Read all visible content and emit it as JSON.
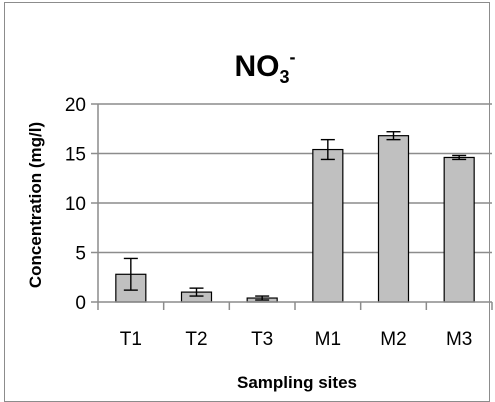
{
  "chart_data": {
    "type": "bar",
    "title": "NO3-",
    "title_parts": {
      "main": "NO",
      "subscript": "3",
      "superscript": "-"
    },
    "xlabel": "Sampling sites",
    "ylabel": "Concentration (mg/l)",
    "categories": [
      "T1",
      "T2",
      "T3",
      "M1",
      "M2",
      "M3"
    ],
    "values": [
      2.8,
      1.0,
      0.4,
      15.4,
      16.8,
      14.6
    ],
    "error": [
      1.6,
      0.4,
      0.2,
      1.0,
      0.4,
      0.2
    ],
    "ylim": [
      0,
      20
    ],
    "yticks": [
      0,
      5,
      10,
      15,
      20
    ],
    "grid": true,
    "legend": "none",
    "colors": {
      "bar_fill": "#c0c0c0",
      "bar_stroke": "#000000",
      "grid": "#8c8c8c",
      "axis": "#8c8c8c",
      "error": "#000000"
    }
  }
}
